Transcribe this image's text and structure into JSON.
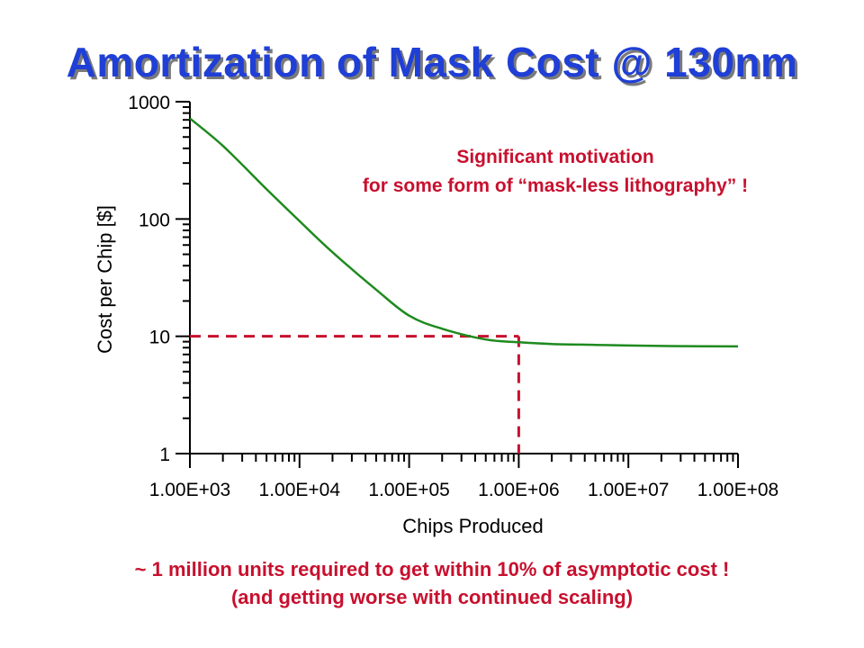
{
  "title": "Amortization of Mask Cost @ 130nm",
  "footnotes": [
    "~ 1 million units required to get within 10% of asymptotic cost !",
    "(and getting worse with continued scaling)"
  ],
  "colors": {
    "title": "#1f3fd6",
    "title_shadow": "#7a7a7a",
    "curve": "#1e8a1e",
    "marker": "#c8102e",
    "annotation": "#c8102e",
    "axis": "#000000"
  },
  "chart_data": {
    "type": "line",
    "xlabel": "Chips Produced",
    "ylabel": "Cost per Chip [$]",
    "x_scale": "log",
    "y_scale": "log",
    "xlim": [
      1000,
      100000000
    ],
    "ylim": [
      1,
      1000
    ],
    "x_ticks": [
      "1.00E+03",
      "1.00E+04",
      "1.00E+05",
      "1.00E+06",
      "1.00E+07",
      "1.00E+08"
    ],
    "y_ticks": [
      "1000",
      "100",
      "10",
      "1"
    ],
    "series": [
      {
        "x": [
          1000,
          2000,
          5000,
          10000,
          20000,
          50000,
          100000,
          200000,
          500000,
          1000000,
          2000000,
          5000000,
          10000000,
          30000000,
          100000000
        ],
        "y": [
          720,
          420,
          180,
          96,
          52,
          25,
          15,
          11.6,
          9.4,
          8.9,
          8.6,
          8.45,
          8.35,
          8.25,
          8.2
        ]
      }
    ],
    "reference_lines": [
      {
        "axis": "y",
        "value": 10,
        "x_end": 1000000
      },
      {
        "axis": "x",
        "value": 1000000,
        "y_end": 10
      }
    ],
    "annotation": [
      "Significant motivation",
      "for some form of “mask-less lithography” !"
    ],
    "grid": false,
    "legend": "none"
  }
}
